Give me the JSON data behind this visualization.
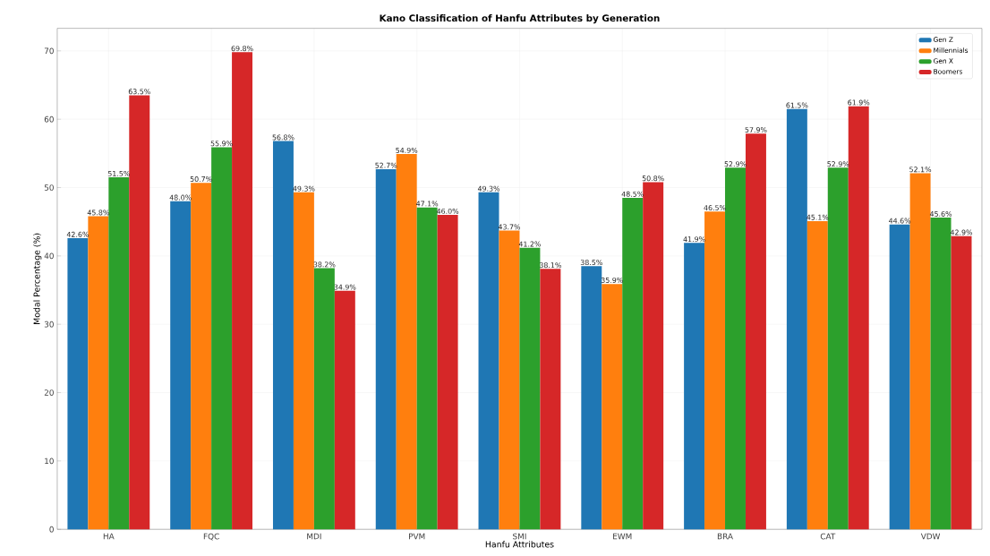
{
  "chart_data": {
    "type": "bar",
    "title": "Kano Classification of Hanfu Attributes by Generation",
    "xlabel": "Hanfu Attributes",
    "ylabel": "Modal Percentage (%)",
    "categories": [
      "HA",
      "FQC",
      "MDI",
      "PVM",
      "SMI",
      "EWM",
      "BRA",
      "CAT",
      "VDW"
    ],
    "series": [
      {
        "name": "Gen Z",
        "color": "#1f77b4",
        "values": [
          42.6,
          48.0,
          56.8,
          52.7,
          49.3,
          38.5,
          41.9,
          61.5,
          44.6
        ],
        "value_labels": [
          "42.6%",
          "48.0%",
          "56.8%",
          "52.7%",
          "49.3%",
          "38.5%",
          "41.9%",
          "61.5%",
          "44.6%"
        ]
      },
      {
        "name": "Millennials",
        "color": "#ff7f0e",
        "values": [
          45.8,
          50.7,
          49.3,
          54.9,
          43.7,
          35.9,
          46.5,
          45.1,
          52.1
        ],
        "value_labels": [
          "45.8%",
          "50.7%",
          "49.3%",
          "54.9%",
          "43.7%",
          "35.9%",
          "46.5%",
          "45.1%",
          "52.1%"
        ]
      },
      {
        "name": "Gen X",
        "color": "#2ca02c",
        "values": [
          51.5,
          55.9,
          38.2,
          47.1,
          41.2,
          48.5,
          52.9,
          52.9,
          45.6
        ],
        "value_labels": [
          "51.5%",
          "55.9%",
          "38.2%",
          "47.1%",
          "41.2%",
          "48.5%",
          "52.9%",
          "52.9%",
          "45.6%"
        ]
      },
      {
        "name": "Boomers",
        "color": "#d62728",
        "values": [
          63.5,
          69.8,
          34.9,
          46.0,
          38.1,
          50.8,
          57.9,
          61.9,
          42.9
        ],
        "value_labels": [
          "63.5%",
          "69.8%",
          "34.9%",
          "46.0%",
          "38.1%",
          "50.8%",
          "57.9%",
          "61.9%",
          "42.9%"
        ]
      }
    ],
    "ylim": [
      0,
      73.3
    ],
    "yticks": [
      0,
      10,
      20,
      30,
      40,
      50,
      60,
      70
    ],
    "grid": true,
    "legend": "top right"
  }
}
